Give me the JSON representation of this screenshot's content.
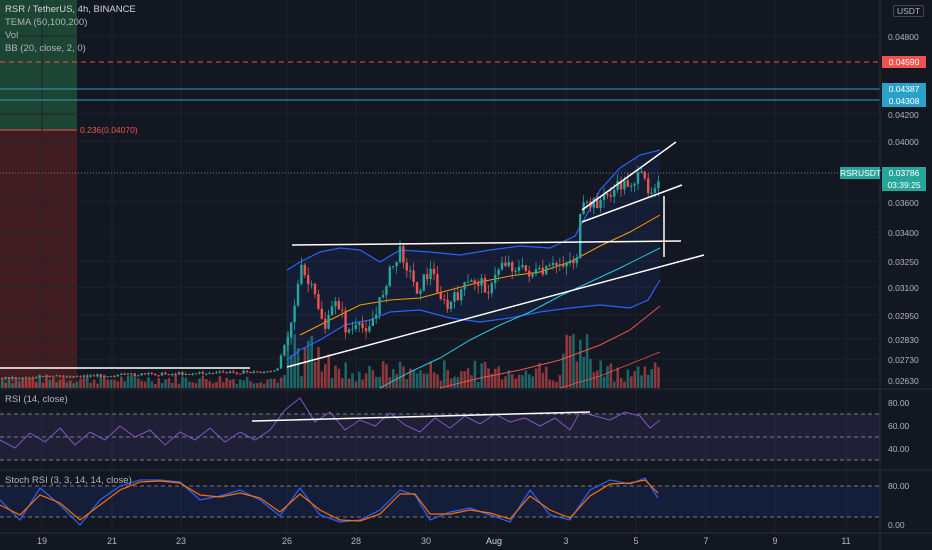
{
  "header": {
    "title": "RSR / TetherUS, 4h, BINANCE",
    "indicators": [
      "TEMA (50,100,200)",
      "Vol",
      "BB (20, close, 2, 0)"
    ]
  },
  "currency_label": "USDT",
  "price_axis": [
    "0.04800",
    "0.04200",
    "0.04000",
    "0.03600",
    "0.03400",
    "0.03250",
    "0.03100",
    "0.02950",
    "0.02830",
    "0.02730",
    "0.02630"
  ],
  "price_tags": {
    "red": "0.04590",
    "teal_top": "0.04387",
    "teal_bottom": "0.04308",
    "symbol": "RSRUSDT",
    "last": "0.03786",
    "countdown": "03:39:25"
  },
  "fib_label": "0.236(0.04070)",
  "rsi": {
    "title": "RSI (14, close)",
    "axis": [
      "80.00",
      "60.00",
      "40.00"
    ]
  },
  "stoch": {
    "title": "Stoch RSI (3, 3, 14, 14, close)",
    "axis": [
      "80.00",
      "0.00"
    ]
  },
  "time_axis": [
    "19",
    "21",
    "23",
    "26",
    "28",
    "30",
    "Aug",
    "3",
    "5",
    "7",
    "9",
    "11"
  ],
  "colors": {
    "up": "#26a69a",
    "down": "#ef5350",
    "bg": "#131722",
    "rsi": "#7e57c2"
  }
}
